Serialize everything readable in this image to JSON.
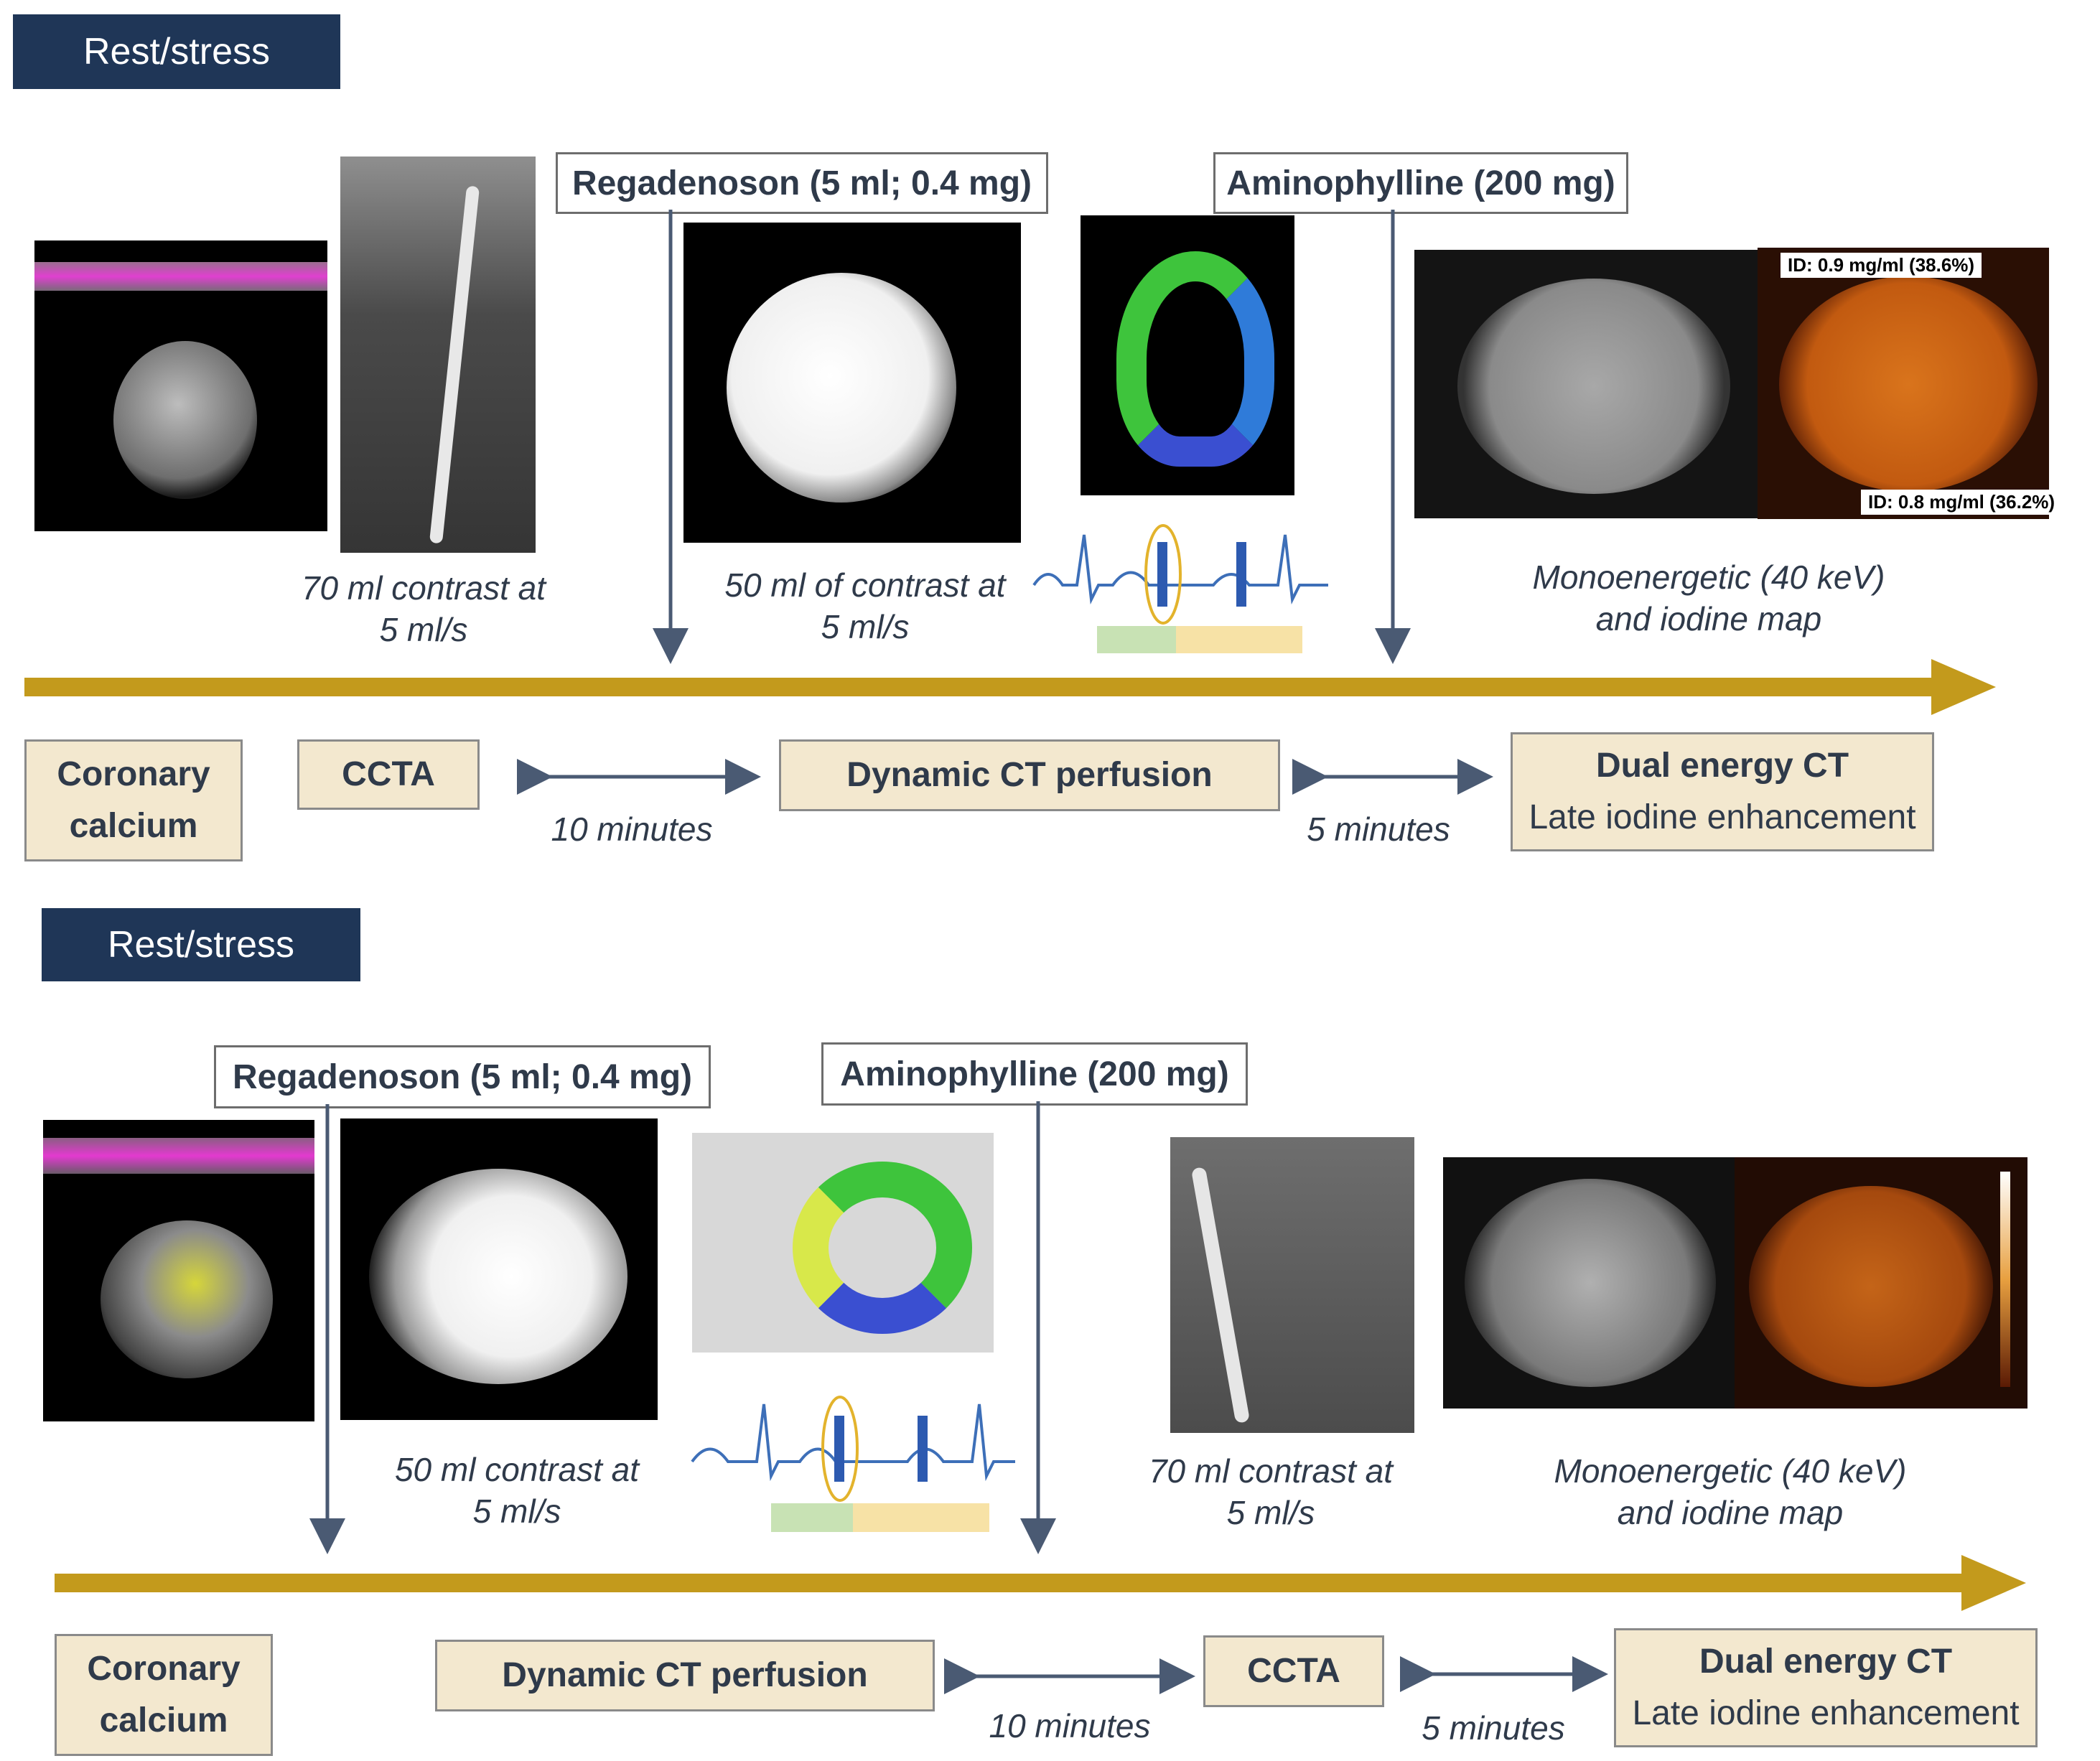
{
  "panels": [
    {
      "banner": "Rest/stress",
      "drugs": {
        "regadenoson": "Regadenoson (5 ml; 0.4 mg)",
        "aminophylline": "Aminophylline (200 mg)"
      },
      "captions": {
        "ccta": [
          "70 ml contrast at",
          "5 ml/s"
        ],
        "perfusion": [
          "50 ml of contrast at",
          "5 ml/s"
        ],
        "dual": [
          "Monoenergetic (40 keV)",
          "and iodine map"
        ]
      },
      "iodine_tags": [
        "ID: 0.9 mg/ml (38.6%)",
        "ID: 0.8 mg/ml (36.2%)"
      ],
      "steps": {
        "calcium": [
          "Coronary",
          "calcium"
        ],
        "ccta": "CCTA",
        "perfusion": "Dynamic CT perfusion",
        "dual": [
          "Dual energy CT",
          "Late iodine enhancement"
        ]
      },
      "intervals": [
        "10 minutes",
        "5 minutes"
      ]
    },
    {
      "banner": "Rest/stress",
      "drugs": {
        "regadenoson": "Regadenoson (5 ml; 0.4 mg)",
        "aminophylline": "Aminophylline (200 mg)"
      },
      "captions": {
        "perfusion": [
          "50 ml contrast at",
          "5 ml/s"
        ],
        "ccta": [
          "70 ml contrast at",
          "5 ml/s"
        ],
        "dual": [
          "Monoenergetic (40 keV)",
          "and iodine map"
        ]
      },
      "steps": {
        "calcium": [
          "Coronary",
          "calcium"
        ],
        "perfusion": "Dynamic CT perfusion",
        "ccta": "CCTA",
        "dual": [
          "Dual energy CT",
          "Late iodine enhancement"
        ]
      },
      "intervals": [
        "10 minutes",
        "5 minutes"
      ]
    }
  ],
  "colors": {
    "banner": "#1f3657",
    "timeline": "#c39a1c",
    "step_fill": "#f3e8cf",
    "arrow": "#4a5a73"
  }
}
